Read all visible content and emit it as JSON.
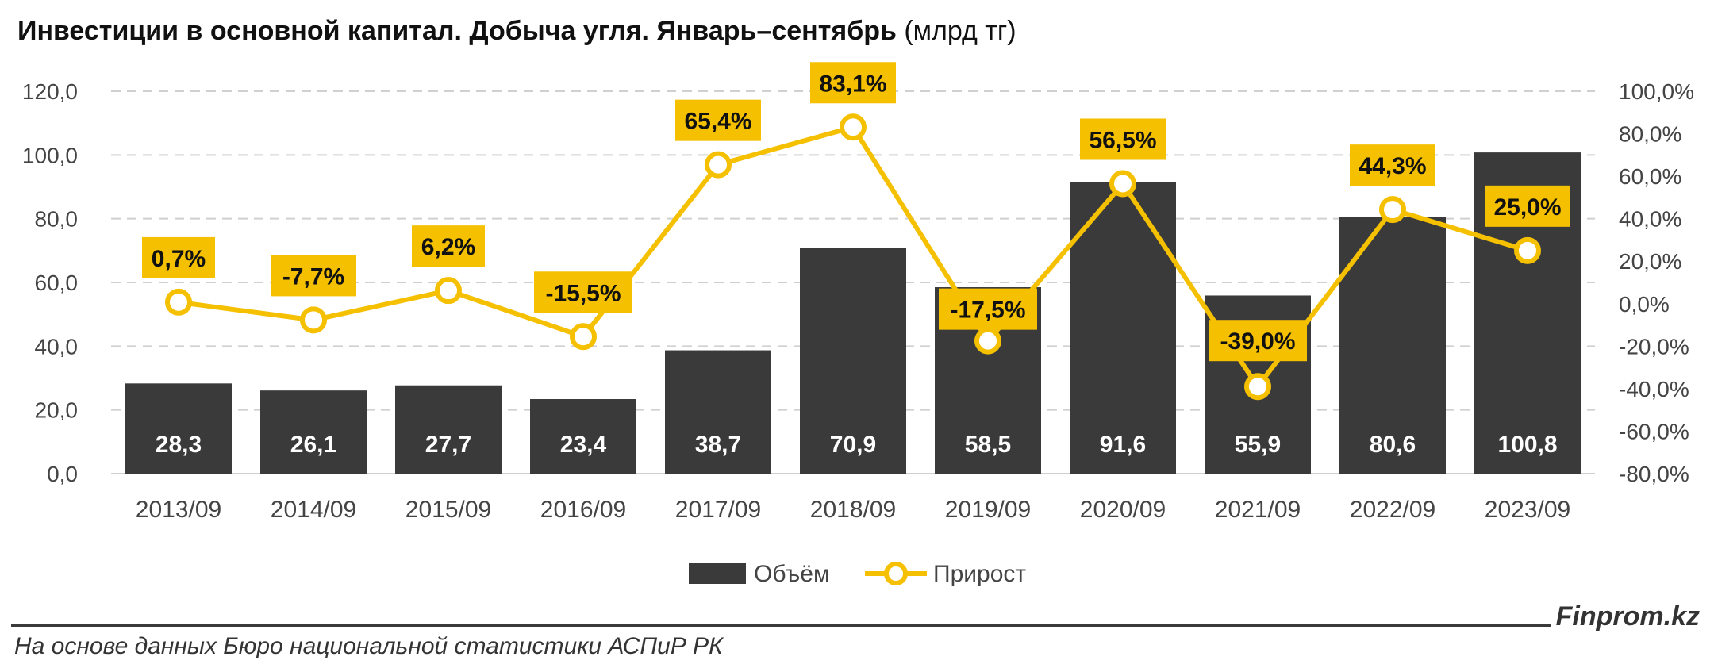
{
  "title": {
    "main": "Инвестиции в основной капитал. Добыча угля. Январь–сентябрь",
    "unit": "(млрд тг)"
  },
  "footer": {
    "source": "На основе данных Бюро национальной статистики АСПиР РК",
    "brand": "Finprom.kz"
  },
  "colors": {
    "bar": "#3a3a3a",
    "line": "#f5c000",
    "label_bg": "#f5c000",
    "grid": "#d0d0d0"
  },
  "chart_data": {
    "type": "bar",
    "categories": [
      "2013/09",
      "2014/09",
      "2015/09",
      "2016/09",
      "2017/09",
      "2018/09",
      "2019/09",
      "2020/09",
      "2021/09",
      "2022/09",
      "2023/09"
    ],
    "series": [
      {
        "name": "Объём",
        "type": "bar",
        "axis": "left",
        "values": [
          28.3,
          26.1,
          27.7,
          23.4,
          38.7,
          70.9,
          58.5,
          91.6,
          55.9,
          80.6,
          100.8
        ],
        "labels": [
          "28,3",
          "26,1",
          "27,7",
          "23,4",
          "38,7",
          "70,9",
          "58,5",
          "91,6",
          "55,9",
          "80,6",
          "100,8"
        ]
      },
      {
        "name": "Прирост",
        "type": "line",
        "axis": "right",
        "values": [
          0.7,
          -7.7,
          6.2,
          -15.5,
          65.4,
          83.1,
          -17.5,
          56.5,
          -39.0,
          44.3,
          25.0
        ],
        "labels": [
          "0,7%",
          "-7,7%",
          "6,2%",
          "-15,5%",
          "65,4%",
          "83,1%",
          "-17,5%",
          "56,5%",
          "-39,0%",
          "44,3%",
          "25,0%"
        ]
      }
    ],
    "y_left": {
      "min": 0,
      "max": 120,
      "ticks": [
        0,
        20,
        40,
        60,
        80,
        100,
        120
      ],
      "tick_labels": [
        "0,0",
        "20,0",
        "40,0",
        "60,0",
        "80,0",
        "100,0",
        "120,0"
      ]
    },
    "y_right": {
      "min": -80,
      "max": 100,
      "ticks": [
        -80,
        -60,
        -40,
        -20,
        0,
        20,
        40,
        60,
        80,
        100
      ],
      "tick_labels": [
        "-80,0%",
        "-60,0%",
        "-40,0%",
        "-20,0%",
        "0,0%",
        "20,0%",
        "40,0%",
        "60,0%",
        "80,0%",
        "100,0%"
      ]
    },
    "grid": true,
    "legend": "bottom"
  }
}
